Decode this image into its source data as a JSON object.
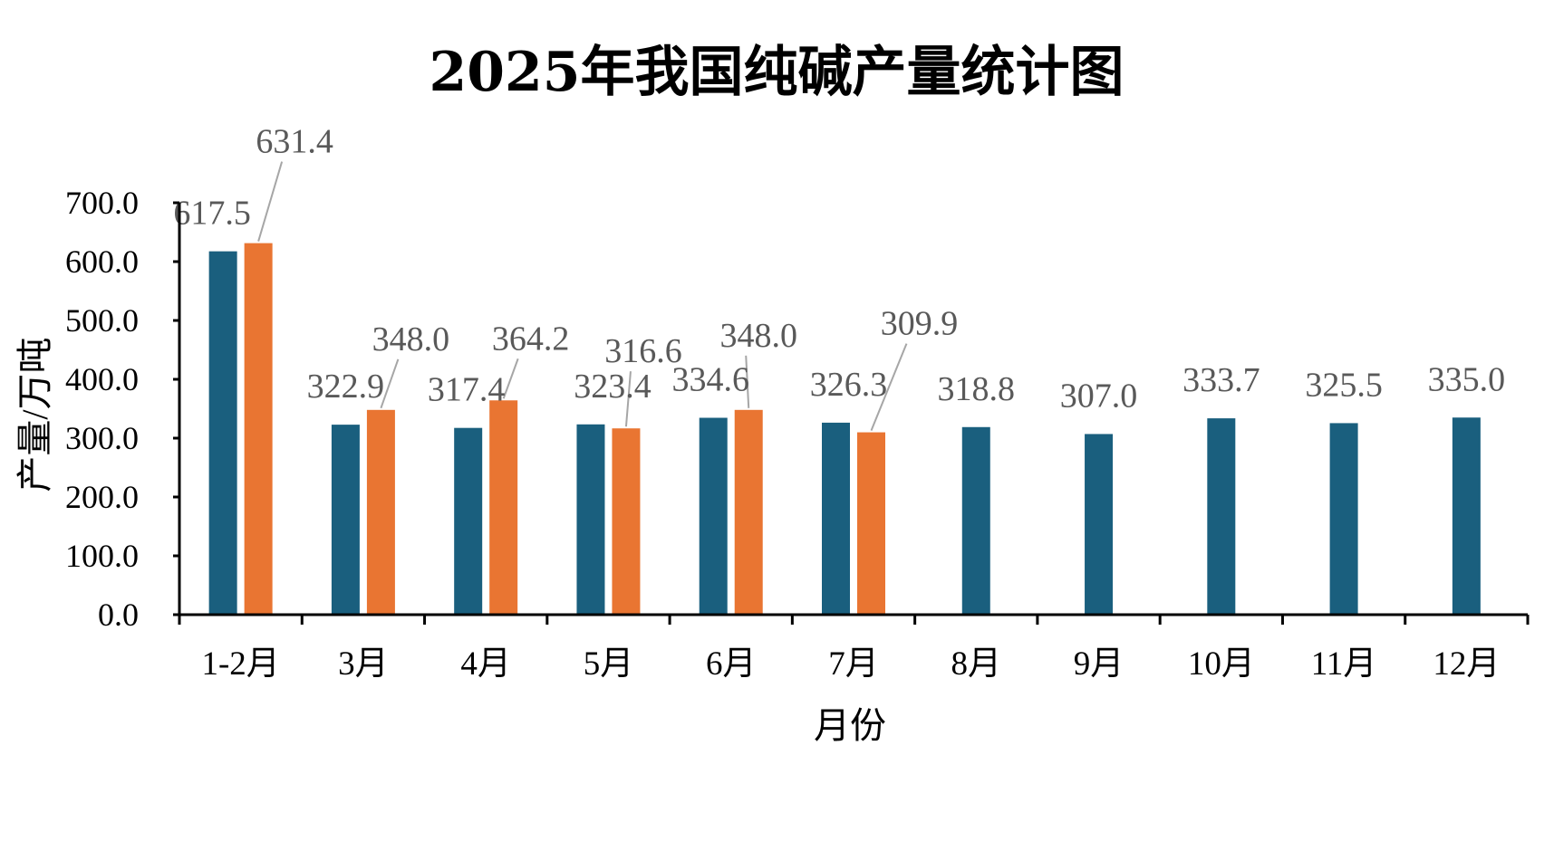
{
  "chart_data": {
    "type": "bar",
    "title": "2025年我国纯碱产量统计图",
    "xlabel": "月份",
    "ylabel": "产量/万吨",
    "ylim": [
      0,
      700
    ],
    "yticks": [
      "0.0",
      "100.0",
      "200.0",
      "300.0",
      "400.0",
      "500.0",
      "600.0",
      "700.0"
    ],
    "grid": false,
    "categories": [
      "1-2月",
      "3月",
      "4月",
      "5月",
      "6月",
      "7月",
      "8月",
      "9月",
      "10月",
      "11月",
      "12月"
    ],
    "series": [
      {
        "values": [
          617.5,
          322.9,
          317.4,
          323.4,
          334.6,
          326.3,
          318.8,
          307.0,
          333.7,
          325.5,
          335.0
        ],
        "labels": [
          "617.5",
          "322.9",
          "317.4",
          "323.4",
          "334.6",
          "326.3",
          "318.8",
          "307.0",
          "333.7",
          "325.5",
          "335.0"
        ],
        "color": "#1a5f7e"
      },
      {
        "values": [
          631.4,
          348.0,
          364.2,
          316.6,
          348.0,
          309.9,
          null,
          null,
          null,
          null,
          null
        ],
        "labels": [
          "631.4",
          "348.0",
          "364.2",
          "316.6",
          "348.0",
          "309.9",
          null,
          null,
          null,
          null,
          null
        ],
        "color": "#e97532"
      }
    ]
  }
}
